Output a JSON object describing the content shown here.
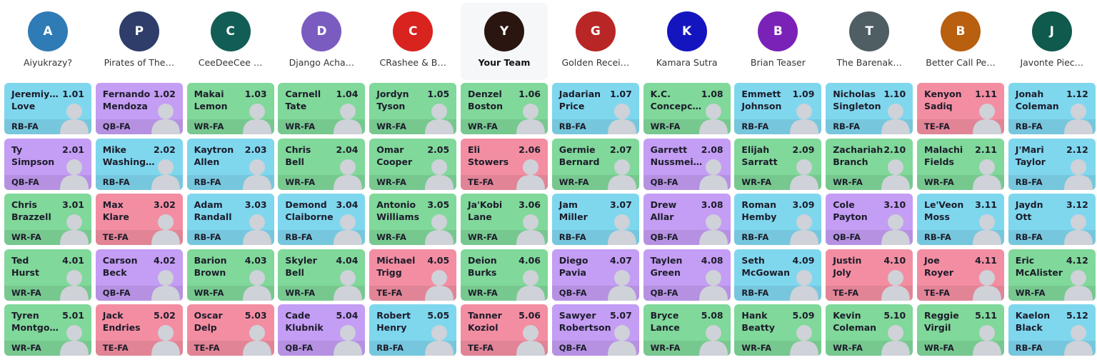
{
  "teams": [
    {
      "initial": "A",
      "name": "Aiyukrazy?",
      "color": "#2f7bb6",
      "highlighted": false
    },
    {
      "initial": "P",
      "name": "Pirates of The…",
      "color": "#2e3d6a",
      "highlighted": false
    },
    {
      "initial": "C",
      "name": "CeeDeeCee …",
      "color": "#125e56",
      "highlighted": false
    },
    {
      "initial": "D",
      "name": "Django Acha…",
      "color": "#7a5cc1",
      "highlighted": false
    },
    {
      "initial": "C",
      "name": "CRashee & B…",
      "color": "#d8231f",
      "highlighted": false
    },
    {
      "initial": "Y",
      "name": "Your Team",
      "color": "#2a1510",
      "highlighted": true
    },
    {
      "initial": "G",
      "name": "Golden Recei…",
      "color": "#b82626",
      "highlighted": false
    },
    {
      "initial": "K",
      "name": "Kamara Sutra",
      "color": "#1515c0",
      "highlighted": false
    },
    {
      "initial": "B",
      "name": "Brian Teaser",
      "color": "#7a22b8",
      "highlighted": false
    },
    {
      "initial": "T",
      "name": "The Barenak…",
      "color": "#4f5e63",
      "highlighted": false
    },
    {
      "initial": "B",
      "name": "Better Call Pe…",
      "color": "#b85f10",
      "highlighted": false
    },
    {
      "initial": "J",
      "name": "Javonte Piec…",
      "color": "#0f5a4c",
      "highlighted": false
    }
  ],
  "rounds": [
    [
      {
        "pick": "1.01",
        "first": "Jeremiy…",
        "last": "Love",
        "position": "RB-FA"
      },
      {
        "pick": "1.02",
        "first": "Fernando",
        "last": "Mendoza",
        "position": "QB-FA"
      },
      {
        "pick": "1.03",
        "first": "Makai",
        "last": "Lemon",
        "position": "WR-FA"
      },
      {
        "pick": "1.04",
        "first": "Carnell",
        "last": "Tate",
        "position": "WR-FA"
      },
      {
        "pick": "1.05",
        "first": "Jordyn",
        "last": "Tyson",
        "position": "WR-FA"
      },
      {
        "pick": "1.06",
        "first": "Denzel",
        "last": "Boston",
        "position": "WR-FA"
      },
      {
        "pick": "1.07",
        "first": "Jadarian",
        "last": "Price",
        "position": "RB-FA"
      },
      {
        "pick": "1.08",
        "first": "K.C.",
        "last": "Concepc…",
        "position": "WR-FA"
      },
      {
        "pick": "1.09",
        "first": "Emmett",
        "last": "Johnson",
        "position": "RB-FA"
      },
      {
        "pick": "1.10",
        "first": "Nicholas",
        "last": "Singleton",
        "position": "RB-FA"
      },
      {
        "pick": "1.11",
        "first": "Kenyon",
        "last": "Sadiq",
        "position": "TE-FA"
      },
      {
        "pick": "1.12",
        "first": "Jonah",
        "last": "Coleman",
        "position": "RB-FA"
      }
    ],
    [
      {
        "pick": "2.01",
        "first": "Ty",
        "last": "Simpson",
        "position": "QB-FA"
      },
      {
        "pick": "2.02",
        "first": "Mike",
        "last": "Washing…",
        "position": "RB-FA"
      },
      {
        "pick": "2.03",
        "first": "Kaytron",
        "last": "Allen",
        "position": "RB-FA"
      },
      {
        "pick": "2.04",
        "first": "Chris",
        "last": "Bell",
        "position": "WR-FA"
      },
      {
        "pick": "2.05",
        "first": "Omar",
        "last": "Cooper",
        "position": "WR-FA"
      },
      {
        "pick": "2.06",
        "first": "Eli",
        "last": "Stowers",
        "position": "TE-FA"
      },
      {
        "pick": "2.07",
        "first": "Germie",
        "last": "Bernard",
        "position": "WR-FA"
      },
      {
        "pick": "2.08",
        "first": "Garrett",
        "last": "Nussmei…",
        "position": "QB-FA"
      },
      {
        "pick": "2.09",
        "first": "Elijah",
        "last": "Sarratt",
        "position": "WR-FA"
      },
      {
        "pick": "2.10",
        "first": "Zachariah",
        "last": "Branch",
        "position": "WR-FA"
      },
      {
        "pick": "2.11",
        "first": "Malachi",
        "last": "Fields",
        "position": "WR-FA"
      },
      {
        "pick": "2.12",
        "first": "J'Mari",
        "last": "Taylor",
        "position": "RB-FA"
      }
    ],
    [
      {
        "pick": "3.01",
        "first": "Chris",
        "last": "Brazzell",
        "position": "WR-FA"
      },
      {
        "pick": "3.02",
        "first": "Max",
        "last": "Klare",
        "position": "TE-FA"
      },
      {
        "pick": "3.03",
        "first": "Adam",
        "last": "Randall",
        "position": "RB-FA"
      },
      {
        "pick": "3.04",
        "first": "Demond",
        "last": "Claiborne",
        "position": "RB-FA"
      },
      {
        "pick": "3.05",
        "first": "Antonio",
        "last": "Williams",
        "position": "WR-FA"
      },
      {
        "pick": "3.06",
        "first": "Ja'Kobi",
        "last": "Lane",
        "position": "WR-FA"
      },
      {
        "pick": "3.07",
        "first": "Jam",
        "last": "Miller",
        "position": "RB-FA"
      },
      {
        "pick": "3.08",
        "first": "Drew",
        "last": "Allar",
        "position": "QB-FA"
      },
      {
        "pick": "3.09",
        "first": "Roman",
        "last": "Hemby",
        "position": "RB-FA"
      },
      {
        "pick": "3.10",
        "first": "Cole",
        "last": "Payton",
        "position": "QB-FA"
      },
      {
        "pick": "3.11",
        "first": "Le'Veon",
        "last": "Moss",
        "position": "RB-FA"
      },
      {
        "pick": "3.12",
        "first": "Jaydn",
        "last": "Ott",
        "position": "RB-FA"
      }
    ],
    [
      {
        "pick": "4.01",
        "first": "Ted",
        "last": "Hurst",
        "position": "WR-FA"
      },
      {
        "pick": "4.02",
        "first": "Carson",
        "last": "Beck",
        "position": "QB-FA"
      },
      {
        "pick": "4.03",
        "first": "Barion",
        "last": "Brown",
        "position": "WR-FA"
      },
      {
        "pick": "4.04",
        "first": "Skyler",
        "last": "Bell",
        "position": "WR-FA"
      },
      {
        "pick": "4.05",
        "first": "Michael",
        "last": "Trigg",
        "position": "TE-FA"
      },
      {
        "pick": "4.06",
        "first": "Deion",
        "last": "Burks",
        "position": "WR-FA"
      },
      {
        "pick": "4.07",
        "first": "Diego",
        "last": "Pavia",
        "position": "QB-FA"
      },
      {
        "pick": "4.08",
        "first": "Taylen",
        "last": "Green",
        "position": "QB-FA"
      },
      {
        "pick": "4.09",
        "first": "Seth",
        "last": "McGowan",
        "position": "RB-FA"
      },
      {
        "pick": "4.10",
        "first": "Justin",
        "last": "Joly",
        "position": "TE-FA"
      },
      {
        "pick": "4.11",
        "first": "Joe",
        "last": "Royer",
        "position": "TE-FA"
      },
      {
        "pick": "4.12",
        "first": "Eric",
        "last": "McAlister",
        "position": "WR-FA"
      }
    ],
    [
      {
        "pick": "5.01",
        "first": "Tyren",
        "last": "Montgo…",
        "position": "WR-FA"
      },
      {
        "pick": "5.02",
        "first": "Jack",
        "last": "Endries",
        "position": "TE-FA"
      },
      {
        "pick": "5.03",
        "first": "Oscar",
        "last": "Delp",
        "position": "TE-FA"
      },
      {
        "pick": "5.04",
        "first": "Cade",
        "last": "Klubnik",
        "position": "QB-FA"
      },
      {
        "pick": "5.05",
        "first": "Robert",
        "last": "Henry",
        "position": "RB-FA"
      },
      {
        "pick": "5.06",
        "first": "Tanner",
        "last": "Koziol",
        "position": "TE-FA"
      },
      {
        "pick": "5.07",
        "first": "Sawyer",
        "last": "Robertson",
        "position": "QB-FA"
      },
      {
        "pick": "5.08",
        "first": "Bryce",
        "last": "Lance",
        "position": "WR-FA"
      },
      {
        "pick": "5.09",
        "first": "Hank",
        "last": "Beatty",
        "position": "WR-FA"
      },
      {
        "pick": "5.10",
        "first": "Kevin",
        "last": "Coleman",
        "position": "WR-FA"
      },
      {
        "pick": "5.11",
        "first": "Reggie",
        "last": "Virgil",
        "position": "WR-FA"
      },
      {
        "pick": "5.12",
        "first": "Kaelon",
        "last": "Black",
        "position": "RB-FA"
      }
    ]
  ]
}
